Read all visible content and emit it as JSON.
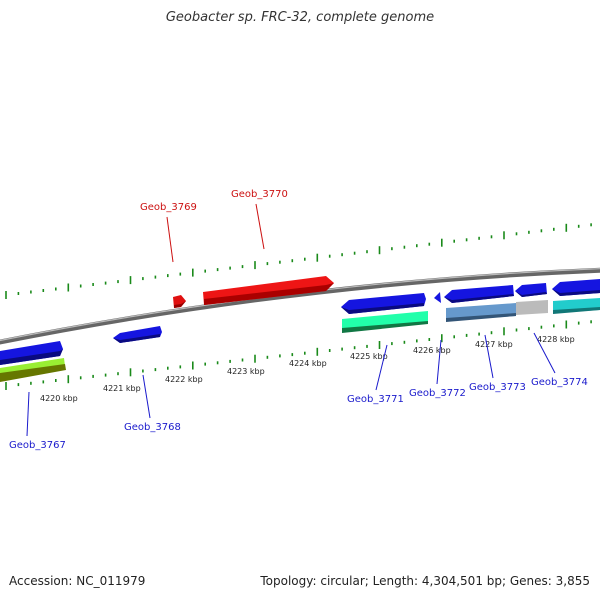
{
  "title": "Geobacter sp. FRC-32, complete genome",
  "accession": "Accession: NC_011979",
  "summary": "Topology: circular; Length: 4,304,501 bp; Genes: 3,855",
  "kbp_ticks": [
    "4220 kbp",
    "4221 kbp",
    "4222 kbp",
    "4223 kbp",
    "4224 kbp",
    "4225 kbp",
    "4226 kbp",
    "4227 kbp",
    "4228 kbp"
  ],
  "genes": [
    {
      "name": "Geob_3767",
      "color": "#1a1acc"
    },
    {
      "name": "Geob_3768",
      "color": "#1a1acc"
    },
    {
      "name": "Geob_3769",
      "color": "#cc1111"
    },
    {
      "name": "Geob_3770",
      "color": "#cc1111"
    },
    {
      "name": "Geob_3771",
      "color": "#1a1acc"
    },
    {
      "name": "Geob_3772",
      "color": "#1a1acc"
    },
    {
      "name": "Geob_3773",
      "color": "#1a1acc"
    },
    {
      "name": "Geob_3774",
      "color": "#1a1acc"
    }
  ]
}
